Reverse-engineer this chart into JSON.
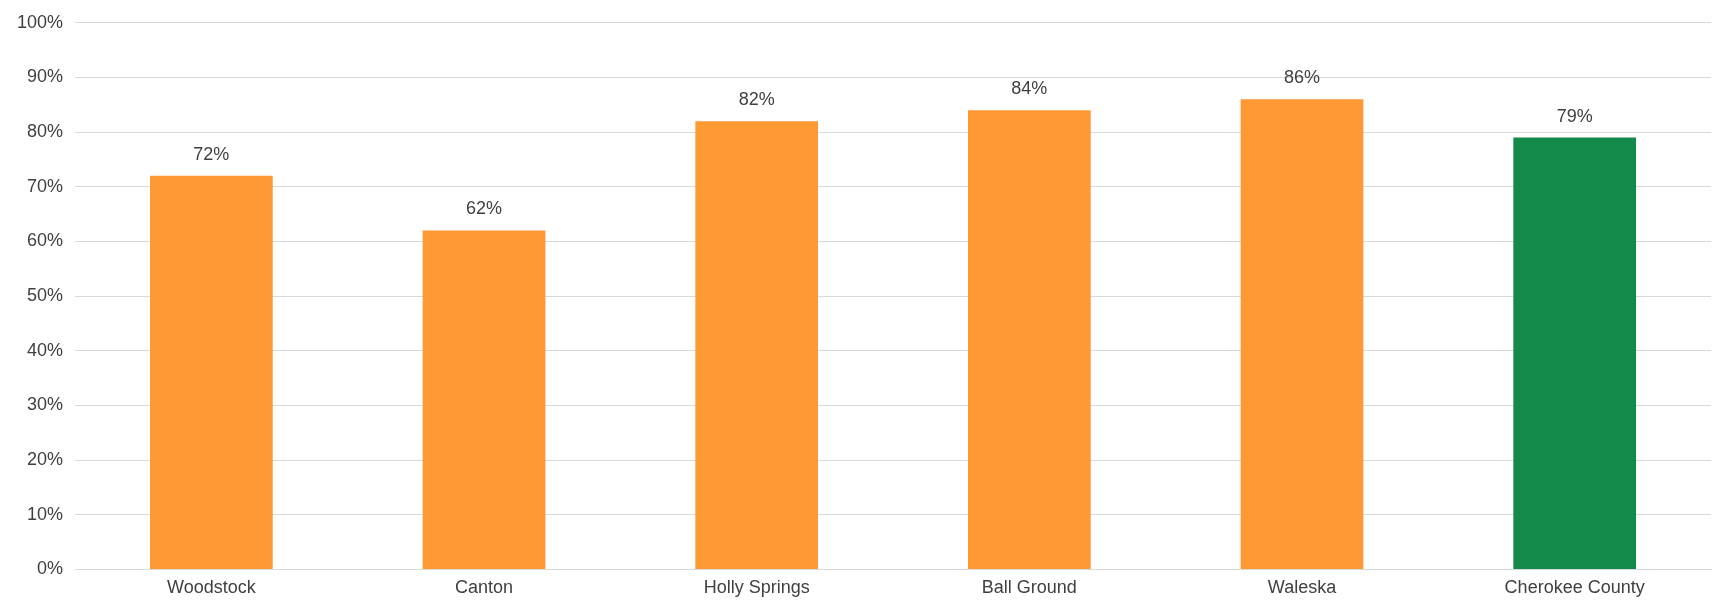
{
  "chart_data": {
    "type": "bar",
    "categories": [
      "Woodstock",
      "Canton",
      "Holly Springs",
      "Ball Ground",
      "Waleska",
      "Cherokee County"
    ],
    "values": [
      72,
      62,
      82,
      84,
      86,
      79
    ],
    "value_labels": [
      "72%",
      "62%",
      "82%",
      "84%",
      "86%",
      "79%"
    ],
    "colors": [
      "#ff9933",
      "#ff9933",
      "#ff9933",
      "#ff9933",
      "#ff9933",
      "#138a4a"
    ],
    "ylim": [
      0,
      100
    ],
    "yticks": [
      {
        "value": 0,
        "label": "0%"
      },
      {
        "value": 10,
        "label": "10%"
      },
      {
        "value": 20,
        "label": "20%"
      },
      {
        "value": 30,
        "label": "30%"
      },
      {
        "value": 40,
        "label": "40%"
      },
      {
        "value": 50,
        "label": "50%"
      },
      {
        "value": 60,
        "label": "60%"
      },
      {
        "value": 70,
        "label": "70%"
      },
      {
        "value": 80,
        "label": "80%"
      },
      {
        "value": 90,
        "label": "90%"
      },
      {
        "value": 100,
        "label": "100%"
      }
    ],
    "grid": "y",
    "legend": false
  }
}
